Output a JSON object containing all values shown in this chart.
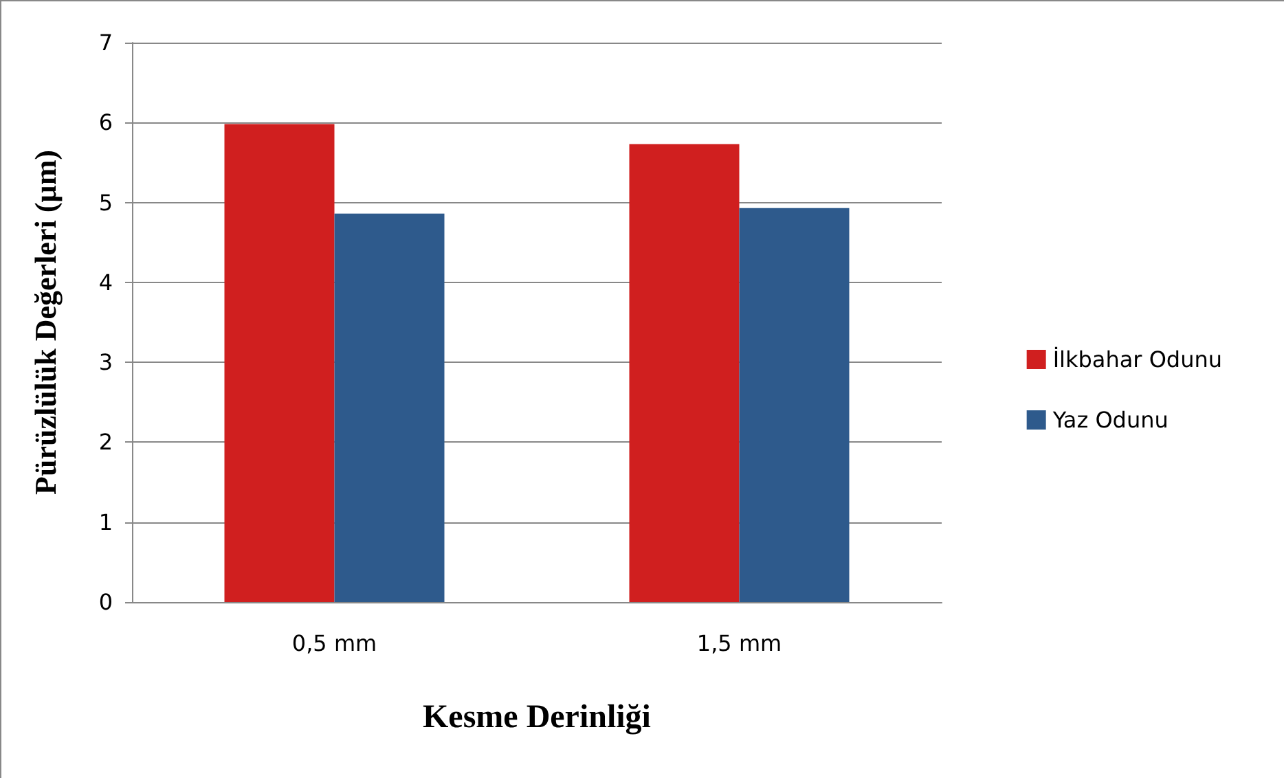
{
  "chart_data": {
    "type": "bar",
    "xlabel": "Kesme Derinliği",
    "ylabel": "Pürüzlülük Değerleri (µm)",
    "categories": [
      "0,5 mm",
      "1,5 mm"
    ],
    "series": [
      {
        "name": "İlkbahar Odunu",
        "color": "#d01f1f",
        "values": [
          5.98,
          5.73
        ]
      },
      {
        "name": "Yaz Odunu",
        "color": "#2e5a8c",
        "values": [
          4.86,
          4.93
        ]
      }
    ],
    "ylim": [
      0,
      7
    ],
    "yticks": [
      0,
      1,
      2,
      3,
      4,
      5,
      6,
      7
    ],
    "grid": "y",
    "legend": "right"
  }
}
